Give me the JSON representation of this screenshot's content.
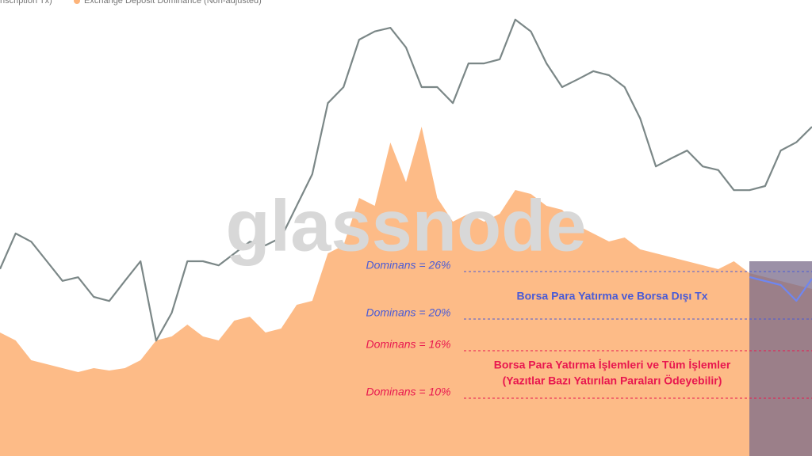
{
  "chart_data": {
    "type": "line",
    "watermark": "glassnode",
    "ylim": [
      2.7,
      60.3
    ],
    "y2lim": [
      0,
      100
    ],
    "series": [
      {
        "name": "Exchange Deposit Dominance (Non-adjusted)",
        "color": "#fdb47a",
        "fill": true,
        "values": [
          18.3,
          17.3,
          14.8,
          14.3,
          13.8,
          13.3,
          13.8,
          13.5,
          13.8,
          14.8,
          17.3,
          17.8,
          19.3,
          17.8,
          17.3,
          19.8,
          20.3,
          18.3,
          18.8,
          21.8,
          22.3,
          28.3,
          29.3,
          35.3,
          34.3,
          42.3,
          37.3,
          44.3,
          35.3,
          32.3,
          33.3,
          32.3,
          33.3,
          36.3,
          35.8,
          34.3,
          33.8,
          31.8,
          30.8,
          29.8,
          30.3,
          28.8,
          28.3,
          27.8,
          27.3,
          26.8,
          26.3,
          27.3,
          25.8,
          25.3,
          24.8,
          24.3,
          23.8
        ]
      },
      {
        "name": "nscription Tx)",
        "color": "#7b8787",
        "axis": "y2",
        "values": [
          41,
          48.8,
          47,
          42.7,
          38.4,
          39.2,
          34.9,
          34,
          38.4,
          42.7,
          25.3,
          31.4,
          42.7,
          42.7,
          41.8,
          44.4,
          47,
          46.2,
          47.9,
          54.9,
          61.8,
          77.4,
          80.9,
          91.3,
          93.1,
          93.9,
          89.6,
          80.9,
          80.9,
          77.4,
          86.1,
          86.1,
          87,
          95.7,
          93.1,
          86.1,
          80.9,
          82.6,
          84.4,
          83.5,
          80.9,
          74,
          63.5,
          65.3,
          67,
          63.5,
          62.7,
          58.3,
          58.3,
          59.2,
          67,
          68.8,
          72.2
        ]
      },
      {
        "color": "#6f86f0",
        "values": [
          null,
          null,
          null,
          null,
          null,
          null,
          null,
          null,
          null,
          null,
          null,
          null,
          null,
          null,
          null,
          null,
          null,
          null,
          null,
          null,
          null,
          null,
          null,
          null,
          null,
          null,
          null,
          null,
          null,
          null,
          null,
          null,
          null,
          null,
          null,
          null,
          null,
          null,
          null,
          null,
          null,
          null,
          null,
          null,
          null,
          null,
          null,
          null,
          25.3,
          24.8,
          24.3,
          22.3,
          25.1
        ]
      }
    ],
    "annotations": [
      {
        "value": 26,
        "label": "Dominans = 26%",
        "color": "#4a5bd6"
      },
      {
        "value": 20,
        "label": "Dominans = 20%",
        "color": "#4a5bd6"
      },
      {
        "value": 16,
        "label": "Dominans = 16%",
        "color": "#e8174f"
      },
      {
        "value": 10,
        "label": "Dominans = 10%",
        "color": "#e8174f"
      }
    ],
    "notes": [
      {
        "text": "Borsa Para Yatırma ve Borsa Dışı Tx",
        "color": "#4a5bd6"
      },
      {
        "text": "Borsa Para Yatırma İşlemleri ve Tüm İşlemler",
        "color": "#e8174f"
      },
      {
        "text": "(Yazıtlar Bazı Yatırılan Paraları Ödeyebilir)",
        "color": "#e8174f"
      }
    ]
  }
}
